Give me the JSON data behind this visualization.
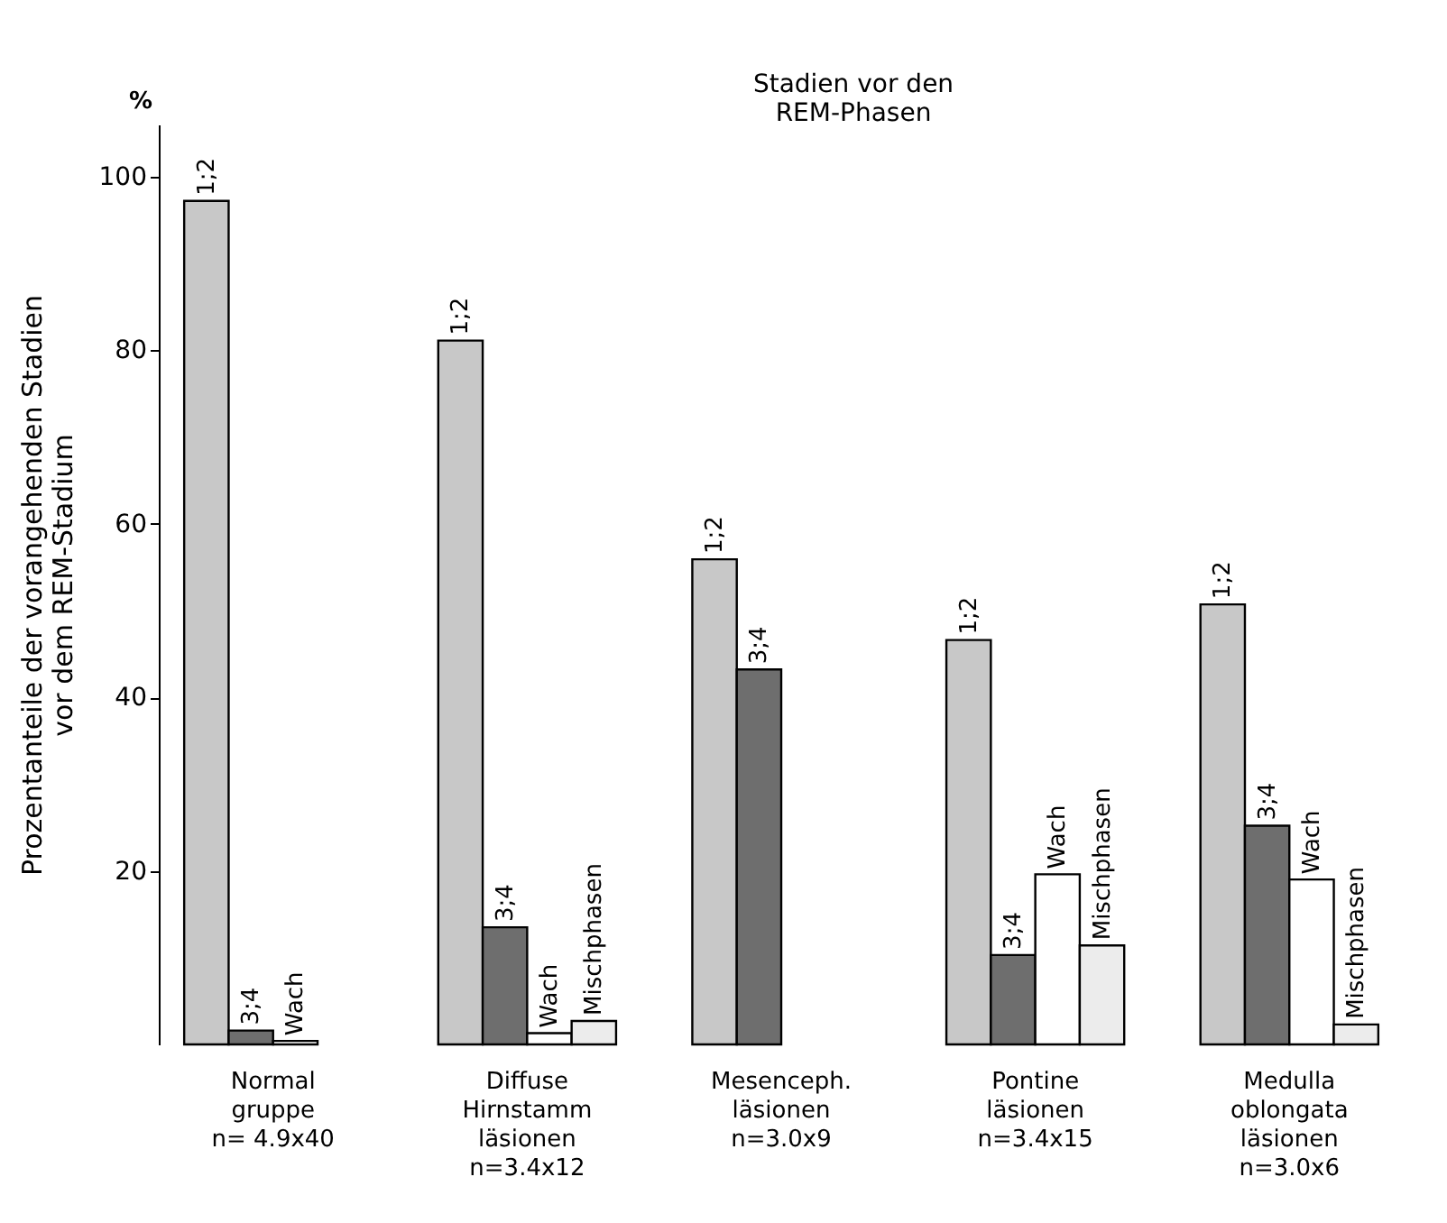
{
  "chart_data": {
    "type": "bar",
    "title": "Stadien vor den\nREM-Phasen",
    "ylabel": "Prozentanteile der vorangehenden Stadien\nvor dem REM-Stadium",
    "categories": [
      "Normal\ngruppe\nn= 4.9x40",
      "Diffuse\nHirnstamm\nläsionen\nn=3.4x12",
      "Mesenceph.\nläsionen\nn=3.0x9",
      "Pontine\nläsionen\nn=3.4x15",
      "Medulla\noblongata\nläsionen\nn=3.0x6"
    ],
    "series": [
      {
        "name": "1;2",
        "color": "#c8c8c8",
        "values": [
          97.2,
          81.1,
          55.9,
          46.6,
          50.7
        ]
      },
      {
        "name": "3;4",
        "color": "#6e6e6e",
        "values": [
          1.6,
          13.5,
          43.2,
          10.3,
          25.2
        ]
      },
      {
        "name": "Wach",
        "color": "#ffffff",
        "values": [
          0.4,
          1.3,
          null,
          19.6,
          19.0
        ]
      },
      {
        "name": "Mischphasen",
        "color": "#ececec",
        "values": [
          null,
          2.7,
          null,
          11.4,
          2.3
        ]
      }
    ],
    "ylim": [
      0,
      106
    ],
    "yticks": [
      20,
      40,
      60,
      80,
      100
    ],
    "annotations": [
      "%"
    ],
    "grid": false,
    "legend": false
  }
}
